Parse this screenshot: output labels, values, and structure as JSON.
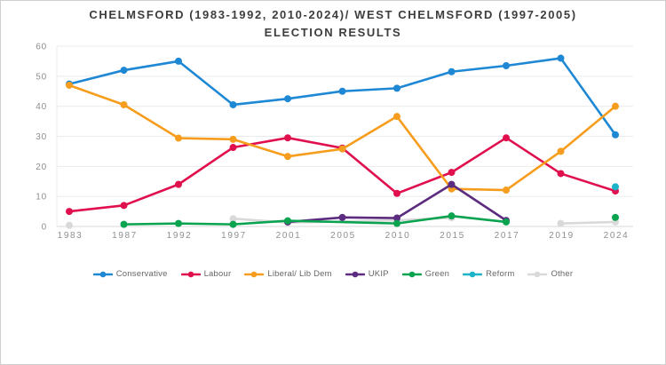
{
  "window": {
    "background": "#ffffff",
    "border_color": "#cfcfcf",
    "gridline_color": "#ebebeb",
    "baseline_color": "#d8d8d8",
    "tick_label_color": "#8f8f8f",
    "title_color": "#3d3d3d",
    "legend_label_color": "#666666"
  },
  "chart_data": {
    "type": "line",
    "title": "CHELMSFORD (1983-1992, 2010-2024)/ WEST CHELMSFORD (1997-2005) ELECTION RESULTS",
    "xlabel": "",
    "ylabel": "",
    "ylim": [
      0,
      60
    ],
    "yticks": [
      0,
      10,
      20,
      30,
      40,
      50,
      60
    ],
    "grid": "horizontal",
    "legend_position": "bottom",
    "categories": [
      "1983",
      "1987",
      "1992",
      "1997",
      "2001",
      "2005",
      "2010",
      "2015",
      "2017",
      "2019",
      "2024"
    ],
    "series": [
      {
        "name": "Conservative",
        "color": "#1e88d5",
        "layer": 1,
        "values": [
          47.4,
          52,
          55,
          40.5,
          42.5,
          45,
          46,
          51.5,
          53.5,
          56,
          30.5
        ]
      },
      {
        "name": "Labour",
        "color": "#e0104e",
        "layer": 1,
        "values": [
          5,
          7,
          14,
          26.3,
          29.5,
          26.1,
          11,
          18,
          29.5,
          17.6,
          11.8
        ]
      },
      {
        "name": "Liberal/ Lib Dem",
        "color": "#f79d1e",
        "layer": 1,
        "values": [
          47,
          40.5,
          29.4,
          29,
          23.3,
          25.8,
          36.6,
          12.5,
          12.1,
          25,
          40
        ]
      },
      {
        "name": "UKIP",
        "color": "#5c2c80",
        "layer": 1,
        "values": [
          null,
          null,
          null,
          null,
          1.5,
          3,
          2.8,
          14,
          2,
          null,
          null
        ]
      },
      {
        "name": "Green",
        "color": "#0aa350",
        "layer": 1,
        "values": [
          null,
          0.7,
          1,
          0.7,
          1.9,
          null,
          1,
          3.5,
          1.5,
          null,
          3
        ],
        "bridges": [
          [
            4,
            6
          ]
        ]
      },
      {
        "name": "Reform",
        "color": "#1cb4c9",
        "layer": 1,
        "values": [
          null,
          null,
          null,
          null,
          null,
          null,
          null,
          null,
          null,
          null,
          13.2
        ]
      },
      {
        "name": "Other",
        "color": "#d9d9d9",
        "layer": 0,
        "values": [
          0.4,
          null,
          null,
          2.6,
          1.3,
          null,
          2,
          2.9,
          null,
          1,
          1.5
        ],
        "bridges": [
          [
            4,
            6
          ]
        ]
      }
    ]
  }
}
